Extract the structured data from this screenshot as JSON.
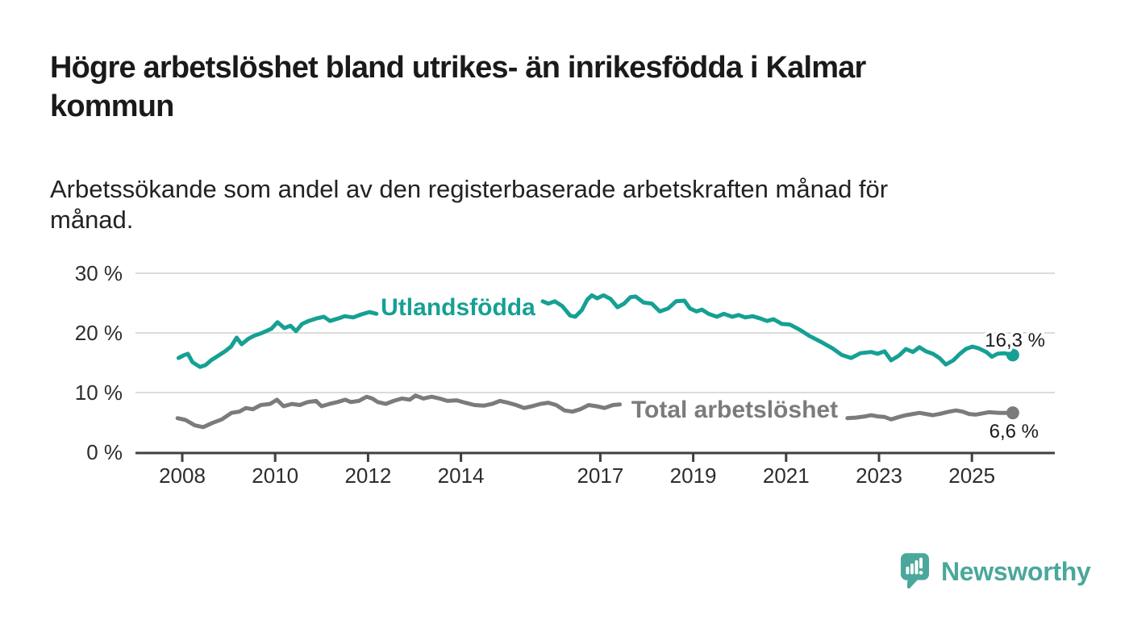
{
  "header": {
    "title_line1": "Högre arbetslöshet bland utrikes- än inrikesfödda i Kalmar",
    "title_line2": "kommun",
    "subtitle_line1": "Arbetssökande som andel av den registerbaserade arbetskraften månad för",
    "subtitle_line2": "månad."
  },
  "chart_data": {
    "type": "line",
    "title": "Högre arbetslöshet bland utrikes- än inrikesfödda i Kalmar kommun",
    "subtitle": "Arbetssökande som andel av den registerbaserade arbetskraften månad för månad.",
    "xlabel": "",
    "ylabel": "",
    "unit": "%",
    "grid": "horizontal",
    "legend": "inline-labels",
    "x_axis": {
      "range": [
        2007.0,
        2026.8
      ],
      "ticks": [
        2008,
        2010,
        2012,
        2014,
        2017,
        2019,
        2021,
        2023,
        2025
      ]
    },
    "y_axis": {
      "range": [
        0,
        31
      ],
      "ticks": [
        0,
        10,
        20,
        30
      ],
      "tick_labels": [
        "0 %",
        "10 %",
        "20 %",
        "30 %"
      ]
    },
    "series": [
      {
        "name": "Utlandsfödda",
        "color": "#16a094",
        "end_value": 16.3,
        "end_label": "16,3 %",
        "segments": [
          [
            [
              2007.92,
              15.8
            ],
            [
              2008.02,
              16.2
            ],
            [
              2008.12,
              16.5
            ],
            [
              2008.22,
              15.1
            ],
            [
              2008.38,
              14.3
            ],
            [
              2008.5,
              14.6
            ],
            [
              2008.62,
              15.4
            ],
            [
              2008.78,
              16.2
            ],
            [
              2008.92,
              16.9
            ],
            [
              2009.05,
              17.7
            ],
            [
              2009.17,
              19.2
            ],
            [
              2009.28,
              18.1
            ],
            [
              2009.42,
              19.0
            ],
            [
              2009.54,
              19.5
            ],
            [
              2009.72,
              20.0
            ],
            [
              2009.92,
              20.7
            ],
            [
              2010.05,
              21.8
            ],
            [
              2010.2,
              20.8
            ],
            [
              2010.33,
              21.2
            ],
            [
              2010.45,
              20.3
            ],
            [
              2010.58,
              21.5
            ],
            [
              2010.72,
              22.0
            ],
            [
              2010.88,
              22.4
            ],
            [
              2011.05,
              22.7
            ],
            [
              2011.18,
              22.0
            ],
            [
              2011.35,
              22.4
            ],
            [
              2011.5,
              22.8
            ],
            [
              2011.68,
              22.6
            ],
            [
              2011.85,
              23.1
            ],
            [
              2012.03,
              23.5
            ],
            [
              2012.18,
              23.2
            ]
          ],
          [
            [
              2015.76,
              25.3
            ],
            [
              2015.88,
              24.9
            ],
            [
              2016.02,
              25.3
            ],
            [
              2016.18,
              24.5
            ],
            [
              2016.35,
              22.9
            ],
            [
              2016.46,
              22.7
            ],
            [
              2016.6,
              23.8
            ],
            [
              2016.72,
              25.6
            ],
            [
              2016.82,
              26.3
            ],
            [
              2016.93,
              25.8
            ],
            [
              2017.07,
              26.3
            ],
            [
              2017.22,
              25.7
            ],
            [
              2017.37,
              24.3
            ],
            [
              2017.51,
              24.9
            ],
            [
              2017.65,
              26.0
            ],
            [
              2017.76,
              26.1
            ],
            [
              2017.93,
              25.1
            ],
            [
              2018.11,
              24.9
            ],
            [
              2018.28,
              23.6
            ],
            [
              2018.46,
              24.1
            ],
            [
              2018.63,
              25.3
            ],
            [
              2018.81,
              25.4
            ],
            [
              2018.93,
              24.1
            ],
            [
              2019.07,
              23.6
            ],
            [
              2019.19,
              23.9
            ],
            [
              2019.33,
              23.2
            ],
            [
              2019.51,
              22.7
            ],
            [
              2019.66,
              23.2
            ],
            [
              2019.84,
              22.7
            ],
            [
              2019.98,
              23.0
            ],
            [
              2020.12,
              22.6
            ],
            [
              2020.28,
              22.8
            ],
            [
              2020.45,
              22.4
            ],
            [
              2020.59,
              22.0
            ],
            [
              2020.73,
              22.3
            ],
            [
              2020.91,
              21.5
            ],
            [
              2021.08,
              21.4
            ],
            [
              2021.3,
              20.5
            ],
            [
              2021.5,
              19.5
            ],
            [
              2021.75,
              18.5
            ],
            [
              2022.0,
              17.4
            ],
            [
              2022.2,
              16.3
            ],
            [
              2022.4,
              15.8
            ],
            [
              2022.6,
              16.6
            ],
            [
              2022.83,
              16.8
            ],
            [
              2022.97,
              16.5
            ],
            [
              2023.12,
              16.9
            ],
            [
              2023.26,
              15.4
            ],
            [
              2023.43,
              16.2
            ],
            [
              2023.58,
              17.3
            ],
            [
              2023.73,
              16.8
            ],
            [
              2023.87,
              17.6
            ],
            [
              2024.01,
              16.9
            ],
            [
              2024.16,
              16.5
            ],
            [
              2024.3,
              15.8
            ],
            [
              2024.44,
              14.7
            ],
            [
              2024.6,
              15.4
            ],
            [
              2024.73,
              16.4
            ],
            [
              2024.87,
              17.3
            ],
            [
              2025.01,
              17.7
            ],
            [
              2025.15,
              17.4
            ],
            [
              2025.31,
              16.8
            ],
            [
              2025.43,
              16.0
            ],
            [
              2025.55,
              16.5
            ],
            [
              2025.69,
              16.6
            ],
            [
              2025.88,
              16.3
            ]
          ]
        ]
      },
      {
        "name": "Total arbetslöshet",
        "color": "#7b7b7b",
        "end_value": 6.6,
        "end_label": "6,6 %",
        "segments": [
          [
            [
              2007.9,
              5.7
            ],
            [
              2008.07,
              5.4
            ],
            [
              2008.27,
              4.5
            ],
            [
              2008.45,
              4.2
            ],
            [
              2008.65,
              4.9
            ],
            [
              2008.85,
              5.5
            ],
            [
              2009.06,
              6.6
            ],
            [
              2009.23,
              6.8
            ],
            [
              2009.37,
              7.4
            ],
            [
              2009.52,
              7.2
            ],
            [
              2009.69,
              7.9
            ],
            [
              2009.89,
              8.1
            ],
            [
              2010.04,
              8.8
            ],
            [
              2010.18,
              7.7
            ],
            [
              2010.36,
              8.1
            ],
            [
              2010.53,
              7.9
            ],
            [
              2010.7,
              8.4
            ],
            [
              2010.88,
              8.6
            ],
            [
              2011.0,
              7.7
            ],
            [
              2011.17,
              8.1
            ],
            [
              2011.34,
              8.4
            ],
            [
              2011.51,
              8.8
            ],
            [
              2011.63,
              8.4
            ],
            [
              2011.8,
              8.6
            ],
            [
              2011.97,
              9.3
            ],
            [
              2012.09,
              9.0
            ],
            [
              2012.21,
              8.4
            ],
            [
              2012.38,
              8.1
            ],
            [
              2012.55,
              8.6
            ],
            [
              2012.73,
              9.0
            ],
            [
              2012.9,
              8.8
            ],
            [
              2013.02,
              9.5
            ],
            [
              2013.19,
              9.0
            ],
            [
              2013.37,
              9.3
            ],
            [
              2013.54,
              9.0
            ],
            [
              2013.71,
              8.6
            ],
            [
              2013.91,
              8.7
            ],
            [
              2014.09,
              8.3
            ],
            [
              2014.29,
              7.9
            ],
            [
              2014.49,
              7.8
            ],
            [
              2014.67,
              8.1
            ],
            [
              2014.84,
              8.6
            ],
            [
              2015.01,
              8.3
            ],
            [
              2015.19,
              7.9
            ],
            [
              2015.36,
              7.4
            ],
            [
              2015.53,
              7.7
            ],
            [
              2015.71,
              8.1
            ],
            [
              2015.88,
              8.3
            ],
            [
              2016.05,
              7.9
            ],
            [
              2016.23,
              7.0
            ],
            [
              2016.4,
              6.8
            ],
            [
              2016.57,
              7.2
            ],
            [
              2016.75,
              7.9
            ],
            [
              2016.92,
              7.7
            ],
            [
              2017.09,
              7.4
            ],
            [
              2017.27,
              7.9
            ],
            [
              2017.42,
              8.0
            ]
          ],
          [
            [
              2022.32,
              5.7
            ],
            [
              2022.5,
              5.8
            ],
            [
              2022.7,
              6.0
            ],
            [
              2022.83,
              6.2
            ],
            [
              2022.97,
              6.0
            ],
            [
              2023.12,
              5.9
            ],
            [
              2023.26,
              5.5
            ],
            [
              2023.43,
              5.9
            ],
            [
              2023.58,
              6.2
            ],
            [
              2023.73,
              6.4
            ],
            [
              2023.87,
              6.6
            ],
            [
              2024.01,
              6.4
            ],
            [
              2024.16,
              6.2
            ],
            [
              2024.3,
              6.4
            ],
            [
              2024.51,
              6.8
            ],
            [
              2024.66,
              7.0
            ],
            [
              2024.8,
              6.8
            ],
            [
              2024.94,
              6.4
            ],
            [
              2025.08,
              6.3
            ],
            [
              2025.22,
              6.5
            ],
            [
              2025.36,
              6.7
            ],
            [
              2025.6,
              6.6
            ],
            [
              2025.88,
              6.6
            ]
          ]
        ]
      }
    ]
  },
  "footer": {
    "brand": "Newsworthy"
  },
  "colors": {
    "utlandsfodda": "#16a094",
    "total": "#7b7b7b",
    "grid": "#dcdcdc",
    "axis": "#3f3f3f",
    "brand_teal": "#4aa79b"
  }
}
